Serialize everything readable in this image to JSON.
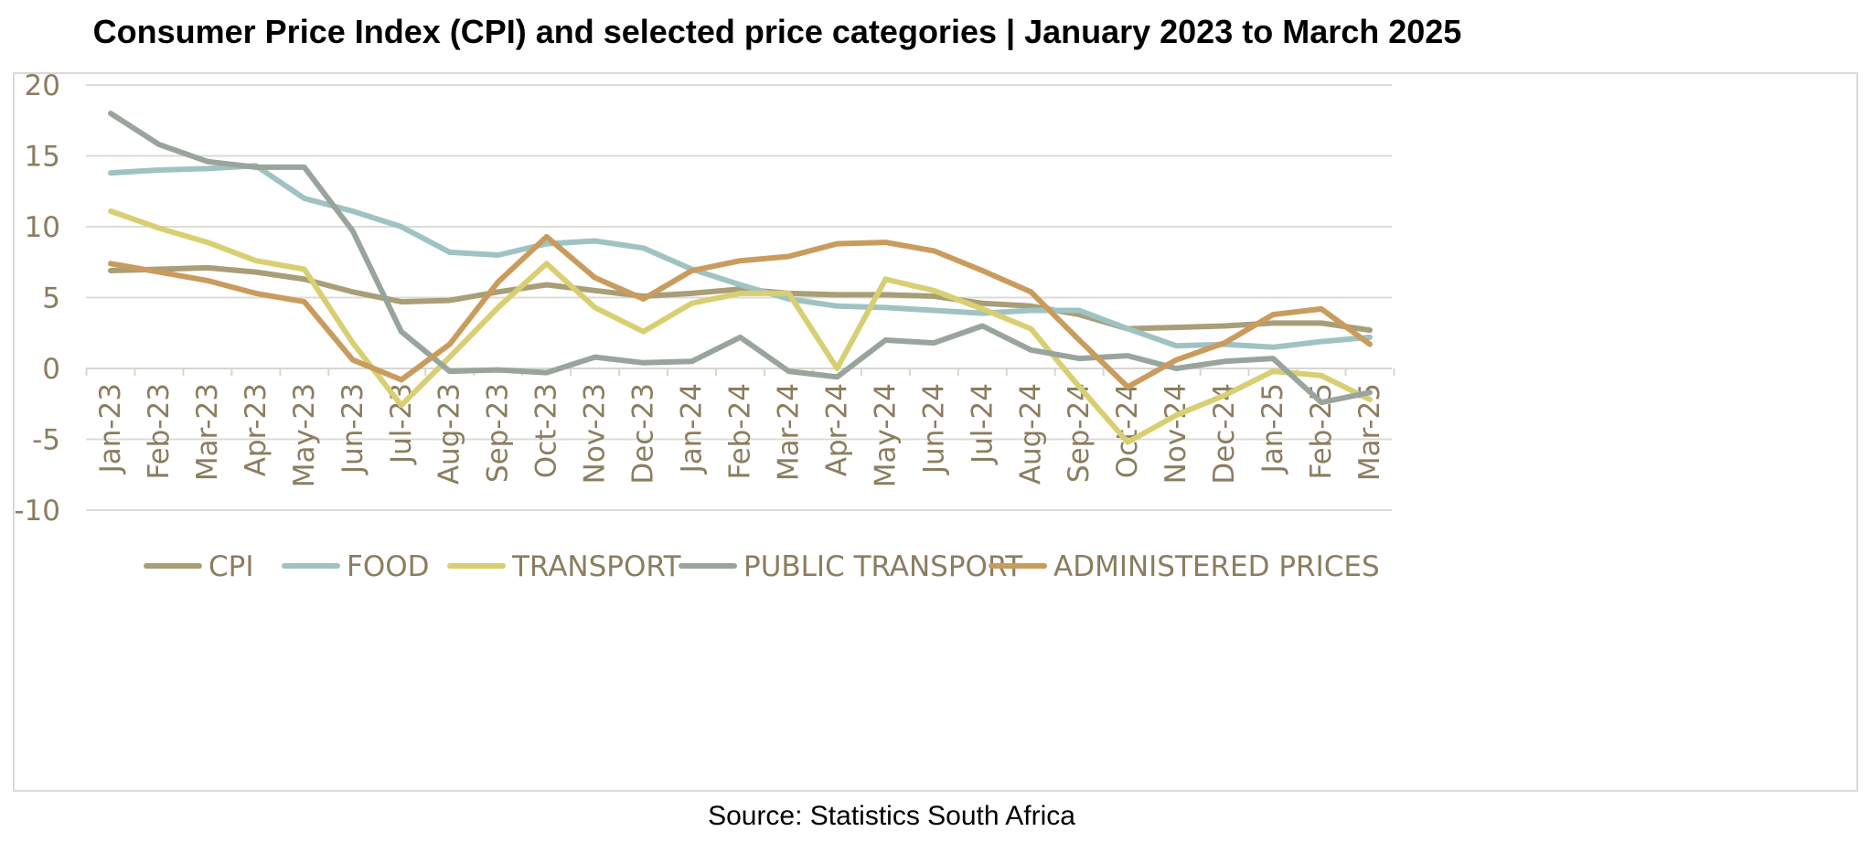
{
  "chart_data": {
    "type": "line",
    "title": "Consumer Price Index (CPI) and selected price categories  | January 2023 to March 2025",
    "source": "Source: Statistics South Africa",
    "xlabel": "",
    "ylabel": "",
    "ylim": [
      -10,
      20
    ],
    "yticks": [
      "20",
      "15",
      "10",
      "5",
      "0",
      "-5",
      "-10"
    ],
    "grid": true,
    "legend_position": "bottom",
    "categories": [
      "Jan-23",
      "Feb-23",
      "Mar-23",
      "Apr-23",
      "May-23",
      "Jun-23",
      "Jul-23",
      "Aug-23",
      "Sep-23",
      "Oct-23",
      "Nov-23",
      "Dec-23",
      "Jan-24",
      "Feb-24",
      "Mar-24",
      "Apr-24",
      "May-24",
      "Jun-24",
      "Jul-24",
      "Aug-24",
      "Sep-24",
      "Oct-24",
      "Nov-24",
      "Dec-24",
      "Jan-25",
      "Feb-25",
      "Mar-25"
    ],
    "series": [
      {
        "name": "CPI",
        "color": "#a89e78",
        "values": [
          6.9,
          7.0,
          7.1,
          6.8,
          6.3,
          5.4,
          4.7,
          4.8,
          5.4,
          5.9,
          5.5,
          5.1,
          5.3,
          5.6,
          5.3,
          5.2,
          5.2,
          5.1,
          4.6,
          4.4,
          3.8,
          2.8,
          2.9,
          3.0,
          3.2,
          3.2,
          2.7
        ]
      },
      {
        "name": "FOOD",
        "color": "#9fc3c3",
        "values": [
          13.8,
          14.0,
          14.1,
          14.3,
          12.0,
          11.1,
          10.0,
          8.2,
          8.0,
          8.8,
          9.0,
          8.5,
          7.0,
          5.9,
          4.9,
          4.4,
          4.3,
          4.1,
          3.9,
          4.1,
          4.1,
          2.8,
          1.6,
          1.7,
          1.5,
          1.9,
          2.2
        ]
      },
      {
        "name": "TRANSPORT",
        "color": "#d8cf72",
        "values": [
          11.1,
          9.9,
          8.9,
          7.6,
          7.0,
          1.8,
          -2.6,
          0.8,
          4.3,
          7.4,
          4.3,
          2.6,
          4.6,
          5.3,
          5.3,
          0.0,
          6.3,
          5.5,
          4.2,
          2.8,
          -1.3,
          -5.2,
          -3.3,
          -1.9,
          -0.2,
          -0.5,
          -2.2
        ]
      },
      {
        "name": "PUBLIC TRANSPORT",
        "color": "#99a49c",
        "values": [
          18.0,
          15.8,
          14.6,
          14.2,
          14.2,
          9.7,
          2.6,
          -0.2,
          -0.1,
          -0.3,
          0.8,
          0.4,
          0.5,
          2.2,
          -0.2,
          -0.6,
          2.0,
          1.8,
          3.0,
          1.3,
          0.7,
          0.9,
          0.0,
          0.5,
          0.7,
          -2.4,
          -1.7
        ]
      },
      {
        "name": "ADMINISTERED PRICES",
        "color": "#c99c5d",
        "values": [
          7.4,
          6.8,
          6.2,
          5.3,
          4.7,
          0.6,
          -0.8,
          1.7,
          6.1,
          9.3,
          6.4,
          4.9,
          6.9,
          7.6,
          7.9,
          8.8,
          8.9,
          8.3,
          6.9,
          5.4,
          2.0,
          -1.3,
          0.6,
          1.8,
          3.8,
          4.2,
          1.7
        ]
      }
    ]
  }
}
